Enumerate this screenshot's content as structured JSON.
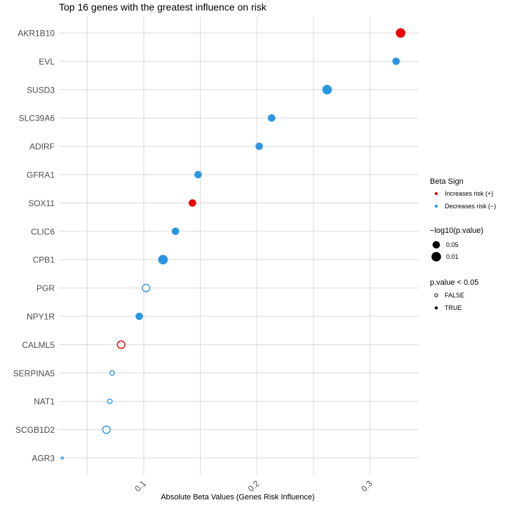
{
  "chart_data": {
    "type": "scatter",
    "title": "Top 16 genes with the greatest influence on risk",
    "xlabel": "Absolute Beta Values (Genes Risk Influence)",
    "ylabel": "",
    "xlim": [
      0.025,
      0.343
    ],
    "x_ticks": [
      {
        "value": 0.1,
        "label": "0.1"
      },
      {
        "value": 0.2,
        "label": "0.2"
      },
      {
        "value": 0.3,
        "label": "0.3"
      }
    ],
    "colors": {
      "increases": "#ee0000",
      "decreases": "#2a96e2"
    },
    "points": [
      {
        "gene": "AKR1B10",
        "beta": 0.327,
        "sign": "increases",
        "size": "0.01",
        "significant": true
      },
      {
        "gene": "EVL",
        "beta": 0.323,
        "sign": "decreases",
        "size": "0.05",
        "significant": true
      },
      {
        "gene": "SUSD3",
        "beta": 0.262,
        "sign": "decreases",
        "size": "0.01",
        "significant": true
      },
      {
        "gene": "SLC39A6",
        "beta": 0.213,
        "sign": "decreases",
        "size": "0.05",
        "significant": true
      },
      {
        "gene": "ADIRF",
        "beta": 0.202,
        "sign": "decreases",
        "size": "0.05",
        "significant": true
      },
      {
        "gene": "GFRA1",
        "beta": 0.148,
        "sign": "decreases",
        "size": "0.05",
        "significant": true
      },
      {
        "gene": "SOX11",
        "beta": 0.143,
        "sign": "increases",
        "size": "0.05",
        "significant": true
      },
      {
        "gene": "CLIC6",
        "beta": 0.128,
        "sign": "decreases",
        "size": "0.05",
        "significant": true
      },
      {
        "gene": "CPB1",
        "beta": 0.117,
        "sign": "decreases",
        "size": "0.01",
        "significant": true
      },
      {
        "gene": "PGR",
        "beta": 0.102,
        "sign": "decreases",
        "size": "0.05",
        "significant": false
      },
      {
        "gene": "NPY1R",
        "beta": 0.096,
        "sign": "decreases",
        "size": "0.05",
        "significant": true
      },
      {
        "gene": "CALML5",
        "beta": 0.08,
        "sign": "increases",
        "size": "0.05",
        "significant": false
      },
      {
        "gene": "SERPINA5",
        "beta": 0.072,
        "sign": "decreases",
        "size": "0.1",
        "significant": false
      },
      {
        "gene": "NAT1",
        "beta": 0.07,
        "sign": "decreases",
        "size": "0.1",
        "significant": false
      },
      {
        "gene": "SCGB1D2",
        "beta": 0.067,
        "sign": "decreases",
        "size": "0.05",
        "significant": false
      },
      {
        "gene": "AGR3",
        "beta": 0.028,
        "sign": "decreases",
        "size": "0.2",
        "significant": false
      }
    ],
    "legend": {
      "position": "right",
      "color_title": "Beta Sign",
      "color_items": [
        {
          "key": "increases",
          "label": "Increases risk (+)"
        },
        {
          "key": "decreases",
          "label": "Decreases risk (−)"
        }
      ],
      "size_title": "−log10(p.value)",
      "size_items": [
        {
          "key": "0.05",
          "label": "0.05"
        },
        {
          "key": "0.01",
          "label": "0.01"
        }
      ],
      "shape_title": "p.value < 0.05",
      "shape_items": [
        {
          "significant": false,
          "label": "FALSE"
        },
        {
          "significant": true,
          "label": "TRUE"
        }
      ]
    }
  }
}
